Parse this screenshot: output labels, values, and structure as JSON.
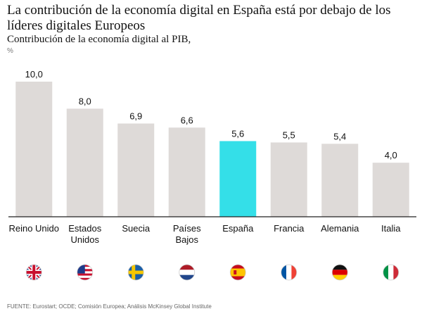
{
  "title": "La contribución de la economía digital en España está por debajo de los líderes digitales Europeos",
  "subtitle": "Contribución de la economía digital al PIB,",
  "unit": "%",
  "source": "FUENTE: Eurostart; OCDE; Comisión Europea; Análisis McKinsey Global Institute",
  "chart_data": {
    "type": "bar",
    "categories": [
      "Reino Unido",
      "Estados\nUnidos",
      "Suecia",
      "Países\nBajos",
      "España",
      "Francia",
      "Alemania",
      "Italia"
    ],
    "values": [
      10.0,
      8.0,
      6.9,
      6.6,
      5.6,
      5.5,
      5.4,
      4.0
    ],
    "value_labels": [
      "10,0",
      "8,0",
      "6,9",
      "6,6",
      "5,6",
      "5,5",
      "5,4",
      "4,0"
    ],
    "highlight_index": 4,
    "colors": {
      "bar": "#dedad8",
      "highlight": "#34dfe8",
      "baseline": "#222222"
    },
    "flags": [
      "uk-flag-icon",
      "usa-flag-icon",
      "sweden-flag-icon",
      "netherlands-flag-icon",
      "spain-flag-icon",
      "france-flag-icon",
      "germany-flag-icon",
      "italy-flag-icon"
    ],
    "ylim": [
      0,
      10
    ],
    "grid": false
  }
}
